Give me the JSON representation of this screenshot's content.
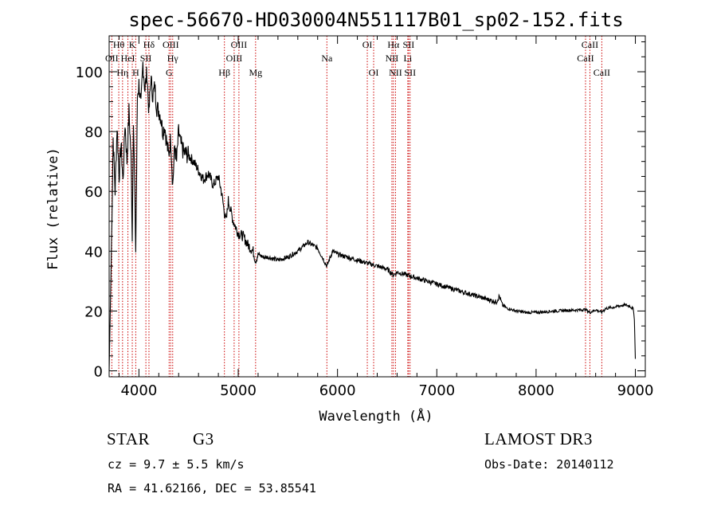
{
  "chart_data": {
    "type": "line",
    "title": "spec-56670-HD030004N551117B01_sp02-152.fits",
    "xlabel": "Wavelength (Å)",
    "ylabel": "Flux (relative)",
    "xlim": [
      3700,
      9100
    ],
    "ylim": [
      -2,
      112
    ],
    "xticks": [
      4000,
      5000,
      6000,
      7000,
      8000,
      9000
    ],
    "yticks": [
      0,
      20,
      40,
      60,
      80,
      100
    ],
    "series": [
      {
        "name": "flux",
        "x": [
          3700,
          3720,
          3740,
          3760,
          3780,
          3800,
          3820,
          3840,
          3860,
          3880,
          3900,
          3920,
          3933,
          3945,
          3968,
          3985,
          4000,
          4020,
          4040,
          4060,
          4080,
          4101,
          4120,
          4140,
          4160,
          4180,
          4200,
          4220,
          4240,
          4260,
          4280,
          4300,
          4320,
          4340,
          4360,
          4380,
          4400,
          4420,
          4450,
          4500,
          4550,
          4600,
          4650,
          4700,
          4750,
          4800,
          4830,
          4861,
          4880,
          4900,
          4950,
          5000,
          5050,
          5100,
          5150,
          5175,
          5200,
          5250,
          5300,
          5400,
          5500,
          5600,
          5700,
          5800,
          5893,
          5950,
          6000,
          6100,
          6200,
          6300,
          6400,
          6500,
          6563,
          6600,
          6700,
          6800,
          6900,
          7000,
          7100,
          7200,
          7300,
          7400,
          7500,
          7600,
          7630,
          7660,
          7700,
          7800,
          7900,
          8000,
          8100,
          8200,
          8300,
          8400,
          8500,
          8542,
          8600,
          8662,
          8700,
          8800,
          8850,
          8900,
          8950,
          8980,
          8990,
          9000
        ],
        "values": [
          0,
          35,
          78,
          60,
          82,
          65,
          76,
          63,
          83,
          70,
          87,
          72,
          45,
          85,
          40,
          92,
          96,
          88,
          103,
          94,
          100,
          86,
          98,
          92,
          95,
          88,
          87,
          85,
          80,
          82,
          76,
          72,
          78,
          62,
          75,
          70,
          80,
          76,
          73,
          72,
          70,
          67,
          64,
          66,
          62,
          65,
          60,
          53,
          50,
          57,
          50,
          46,
          45,
          42,
          40,
          37,
          39,
          38,
          38,
          37,
          38,
          40,
          43,
          41,
          35,
          40,
          39,
          38,
          37,
          36,
          35,
          34,
          32,
          33,
          32,
          31,
          30,
          29,
          28,
          27,
          26,
          25,
          24,
          23,
          25,
          22,
          21,
          20,
          19.5,
          19.5,
          19.8,
          20.0,
          20.2,
          20.3,
          20.5,
          19.5,
          20.4,
          19.6,
          20.8,
          21.4,
          21.8,
          22.0,
          21.5,
          20.5,
          17,
          4
        ]
      }
    ],
    "lines": [
      {
        "label": "Hθ",
        "wavelength": 3797,
        "row": 1
      },
      {
        "label": "OII",
        "wavelength": 3727,
        "row": 2
      },
      {
        "label": "Hη",
        "wavelength": 3835,
        "row": 3
      },
      {
        "label": "HeI",
        "wavelength": 3889,
        "row": 2
      },
      {
        "label": "K",
        "wavelength": 3933,
        "row": 1
      },
      {
        "label": "H",
        "wavelength": 3968,
        "row": 3
      },
      {
        "label": "SII",
        "wavelength": 4070,
        "row": 2
      },
      {
        "label": "Hδ",
        "wavelength": 4101,
        "row": 1
      },
      {
        "label": "OIII",
        "wavelength": 4320,
        "row": 1
      },
      {
        "label": "Hγ",
        "wavelength": 4340,
        "row": 2
      },
      {
        "label": "G",
        "wavelength": 4304,
        "row": 3
      },
      {
        "label": "Hβ",
        "wavelength": 4861,
        "row": 3
      },
      {
        "label": "OIII",
        "wavelength": 4959,
        "row": 2
      },
      {
        "label": "OIII",
        "wavelength": 5007,
        "row": 1
      },
      {
        "label": "Mg",
        "wavelength": 5175,
        "row": 3
      },
      {
        "label": "Na",
        "wavelength": 5893,
        "row": 2
      },
      {
        "label": "OI",
        "wavelength": 6300,
        "row": 1
      },
      {
        "label": "OI",
        "wavelength": 6364,
        "row": 3
      },
      {
        "label": "NII",
        "wavelength": 6548,
        "row": 2
      },
      {
        "label": "Hα",
        "wavelength": 6563,
        "row": 1
      },
      {
        "label": "NII",
        "wavelength": 6584,
        "row": 3
      },
      {
        "label": "SII",
        "wavelength": 6716,
        "row": 1
      },
      {
        "label": "Li",
        "wavelength": 6708,
        "row": 2
      },
      {
        "label": "SII",
        "wavelength": 6731,
        "row": 3
      },
      {
        "label": "CaII",
        "wavelength": 8542,
        "row": 1
      },
      {
        "label": "CaII",
        "wavelength": 8498,
        "row": 2
      },
      {
        "label": "CaII",
        "wavelength": 8662,
        "row": 3
      }
    ]
  },
  "info": {
    "object_class": "STAR",
    "subclass": "G3",
    "survey": "LAMOST DR3",
    "cz": "cz = 9.7 ± 5.5 km/s",
    "obs_date": "Obs-Date: 20140112",
    "coords": "RA =  41.62166, DEC =  53.85541"
  },
  "colors": {
    "line_marker": "#cc0000",
    "spectrum": "#000000"
  }
}
